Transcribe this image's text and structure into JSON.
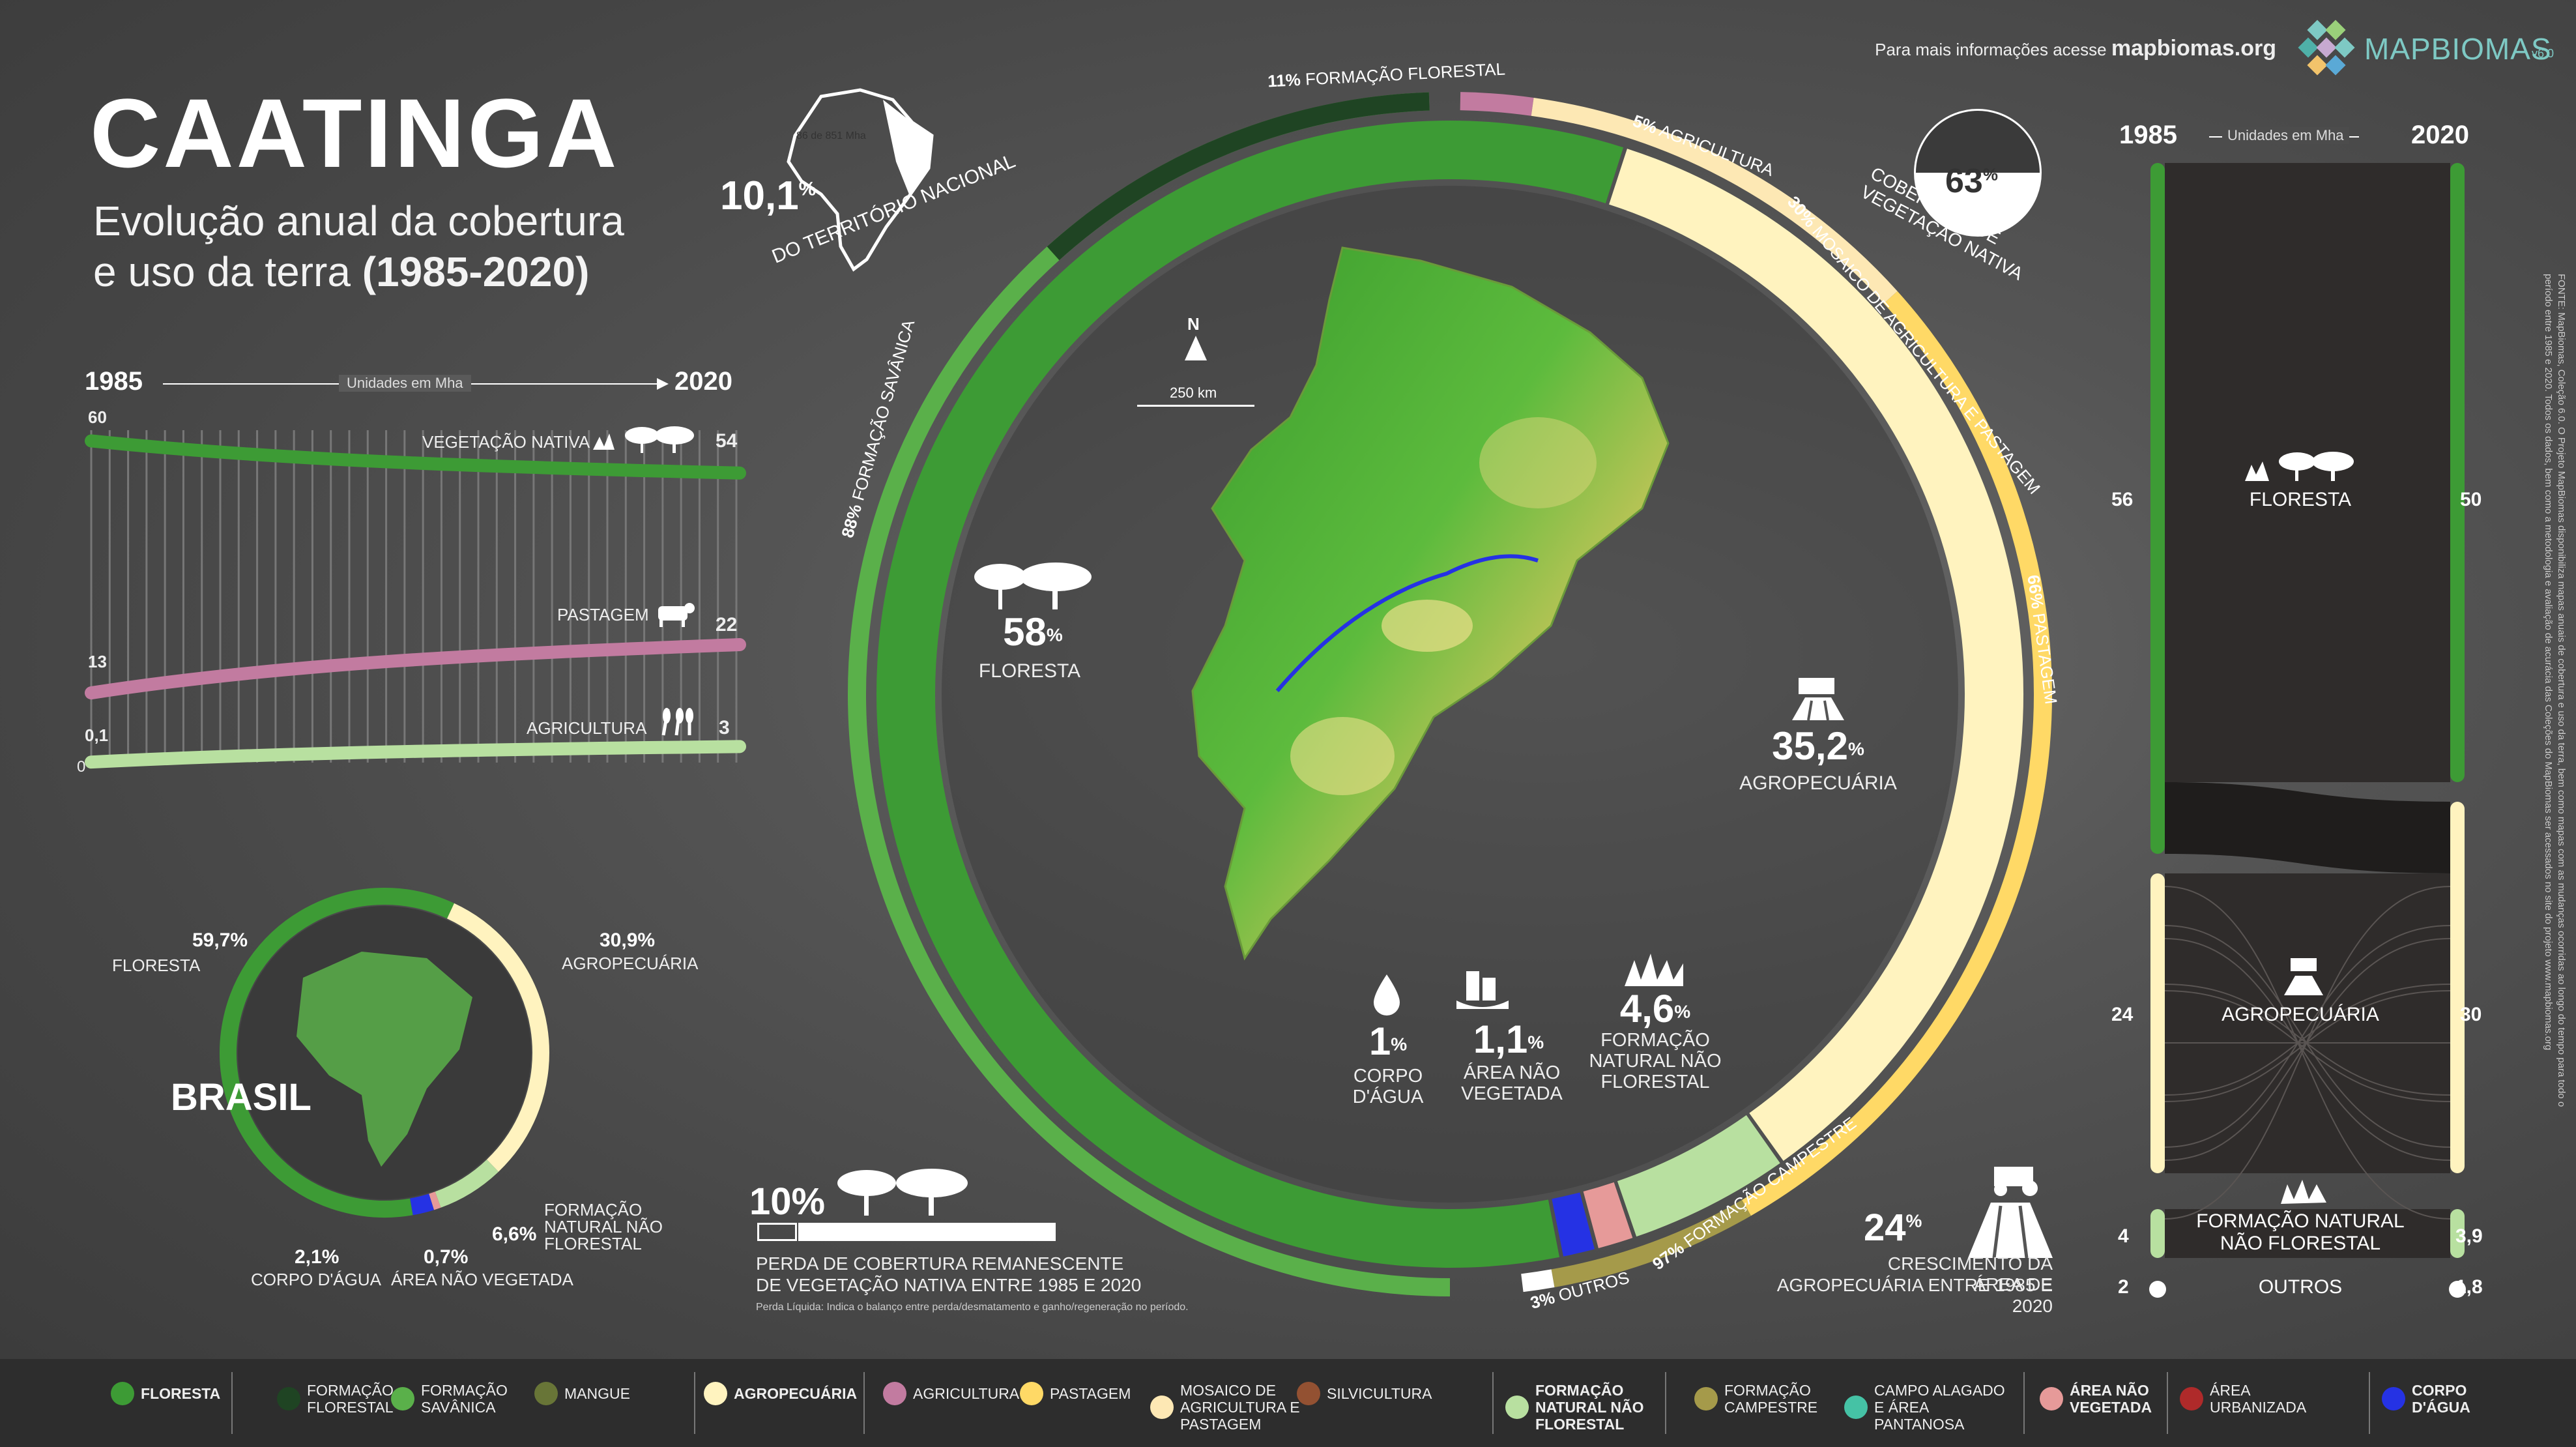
{
  "title": "CAATINGA",
  "subtitle_line1": "Evolução anual da cobertura",
  "subtitle_line2": "e uso da terra",
  "subtitle_years": "(1985-2020)",
  "header": {
    "info_text": "Para mais informações acesse",
    "site": "mapbiomas.org",
    "logo": "MAPBIOMAS",
    "version": "v6.0"
  },
  "territory": {
    "pct": "10,1",
    "label": "DO TERRITÓRIO NACIONAL",
    "mini_label": "86 de 851 Mha"
  },
  "native_cover": {
    "pct": "63",
    "label": "COBERTURA DE VEGETAÇÃO NATIVA"
  },
  "map_scale": {
    "north": "N",
    "scale": "250 km"
  },
  "colors": {
    "floresta": "#3d9b35",
    "formacao_florestal": "#1f4423",
    "formacao_savanica": "#5ab04a",
    "mangue": "#687537",
    "agropecuaria": "#fff3bf",
    "agricultura": "#c27ba0",
    "pastagem": "#ffd966",
    "mosaico": "#fde8b4",
    "silvicultura": "#935132",
    "nao_florestal": "#b8e0a0",
    "campestre": "#a59a4a",
    "campo_alagado": "#45c2a5",
    "area_nao_vegetada": "#e69a99",
    "area_urbanizada": "#af2a2a",
    "corpo_dagua": "#2532e4"
  },
  "chart_data": [
    {
      "type": "line",
      "title": "",
      "x_start_label": "1985",
      "x_end_label": "2020",
      "units": "Unidades em Mha",
      "x": [
        1985,
        2020
      ],
      "series": [
        {
          "name": "VEGETAÇÃO NATIVA",
          "start": "60",
          "end": "54",
          "values": [
            60,
            54
          ]
        },
        {
          "name": "PASTAGEM",
          "start": "13",
          "end": "22",
          "values": [
            13,
            22
          ]
        },
        {
          "name": "AGRICULTURA",
          "start": "0,1",
          "end": "3",
          "values": [
            0.1,
            3
          ]
        }
      ],
      "y_zero_label": "0"
    },
    {
      "type": "pie",
      "title": "CAATINGA",
      "slices": [
        {
          "label": "FLORESTA",
          "pct": "58",
          "value": 58.0
        },
        {
          "label": "AGROPECUÁRIA",
          "pct": "35,2",
          "value": 35.2
        },
        {
          "label": "FORMAÇÃO NATURAL NÃO FLORESTAL",
          "pct": "4,6",
          "value": 4.6
        },
        {
          "label": "ÁREA NÃO VEGETADA",
          "pct": "1,1",
          "value": 1.1
        },
        {
          "label": "CORPO D'ÁGUA",
          "pct": "1",
          "value": 1.0
        }
      ],
      "outer_ring": [
        {
          "label": "FORMAÇÃO SAVÂNICA",
          "pct": "88%",
          "value": 88
        },
        {
          "label": "FORMAÇÃO FLORESTAL",
          "pct": "11%",
          "value": 11
        },
        {
          "label": "AGRICULTURA",
          "pct": "5%",
          "value": 5
        },
        {
          "label": "MOSAICO DE AGRICULTURA E PASTAGEM",
          "pct": "30%",
          "value": 30
        },
        {
          "label": "PASTAGEM",
          "pct": "66%",
          "value": 66
        },
        {
          "label": "FORMAÇÃO CAMPESTRE",
          "pct": "97%",
          "value": 97
        },
        {
          "label": "OUTROS",
          "pct": "3%",
          "value": 3
        }
      ]
    },
    {
      "type": "pie",
      "title": "BRASIL",
      "slices": [
        {
          "label": "FLORESTA",
          "pct": "59,7%",
          "value": 59.7
        },
        {
          "label": "AGROPECUÁRIA",
          "pct": "30,9%",
          "value": 30.9
        },
        {
          "label": "FORMAÇÃO NATURAL NÃO FLORESTAL",
          "pct": "6,6%",
          "value": 6.6
        },
        {
          "label": "CORPO D'ÁGUA",
          "pct": "2,1%",
          "value": 2.1
        },
        {
          "label": "ÁREA NÃO VEGETADA",
          "pct": "0,7%",
          "value": 0.7
        }
      ]
    },
    {
      "type": "bar",
      "title": "",
      "x_start_label": "1985",
      "x_end_label": "2020",
      "units": "Unidades em Mha",
      "categories": [
        "FLORESTA",
        "AGROPECUÁRIA",
        "FORMAÇÃO NATURAL NÃO FLORESTAL",
        "OUTROS"
      ],
      "series": [
        {
          "name": "1985",
          "labels": [
            "56",
            "24",
            "4",
            "2"
          ],
          "values": [
            56,
            24,
            4,
            2
          ]
        },
        {
          "name": "2020",
          "labels": [
            "50",
            "30",
            "3,9",
            "1,8"
          ],
          "values": [
            50,
            30,
            3.9,
            1.8
          ]
        }
      ]
    }
  ],
  "loss": {
    "pct": "10%",
    "line1": "PERDA DE COBERTURA REMANESCENTE",
    "line2": "DE VEGETAÇÃO NATIVA ENTRE 1985 E 2020",
    "note": "Perda Líquida: Indica o balanço entre perda/desmatamento e ganho/regeneração no período."
  },
  "growth": {
    "pct": "24",
    "line1": "CRESCIMENTO DA ÁREA DE",
    "line2": "AGROPECUÁRIA ENTRE 1985 E 2020"
  },
  "source_text": "FONTE: MapBiomas, Coleção 6.0. O Projeto MapBiomas disponibiliza mapas anuais de cobertura e uso da terra, bem como mapas com as mudanças ocorridas ao longo do tempo para todo o período entre 1985 e 2020. Todos os dados, bem como a metodologia e avaliação de acurácia das Coleções do MapBiomas ser acessados no site do projeto www.mapbiomas.org",
  "legend": [
    {
      "label": "FLORESTA",
      "bold": true,
      "color": "#3d9b35"
    },
    {
      "label": "FORMAÇÃO FLORESTAL",
      "bold": false,
      "color": "#1f4423"
    },
    {
      "label": "FORMAÇÃO SAVÂNICA",
      "bold": false,
      "color": "#5ab04a"
    },
    {
      "label": "MANGUE",
      "bold": false,
      "color": "#687537"
    },
    {
      "label": "AGROPECUÁRIA",
      "bold": true,
      "color": "#fff3bf"
    },
    {
      "label": "AGRICULTURA",
      "bold": false,
      "color": "#c27ba0"
    },
    {
      "label": "PASTAGEM",
      "bold": false,
      "color": "#ffd966"
    },
    {
      "label": "MOSAICO DE AGRICULTURA E PASTAGEM",
      "bold": false,
      "color": "#fde8b4"
    },
    {
      "label": "SILVICULTURA",
      "bold": false,
      "color": "#935132"
    },
    {
      "label": "FORMAÇÃO NATURAL NÃO FLORESTAL",
      "bold": true,
      "color": "#b8e0a0"
    },
    {
      "label": "FORMAÇÃO CAMPESTRE",
      "bold": false,
      "color": "#a59a4a"
    },
    {
      "label": "CAMPO ALAGADO E ÁREA PANTANOSA",
      "bold": false,
      "color": "#45c2a5"
    },
    {
      "label": "ÁREA NÃO VEGETADA",
      "bold": true,
      "color": "#e69a99"
    },
    {
      "label": "ÁREA URBANIZADA",
      "bold": false,
      "color": "#af2a2a"
    },
    {
      "label": "CORPO D'ÁGUA",
      "bold": true,
      "color": "#2532e4"
    }
  ]
}
